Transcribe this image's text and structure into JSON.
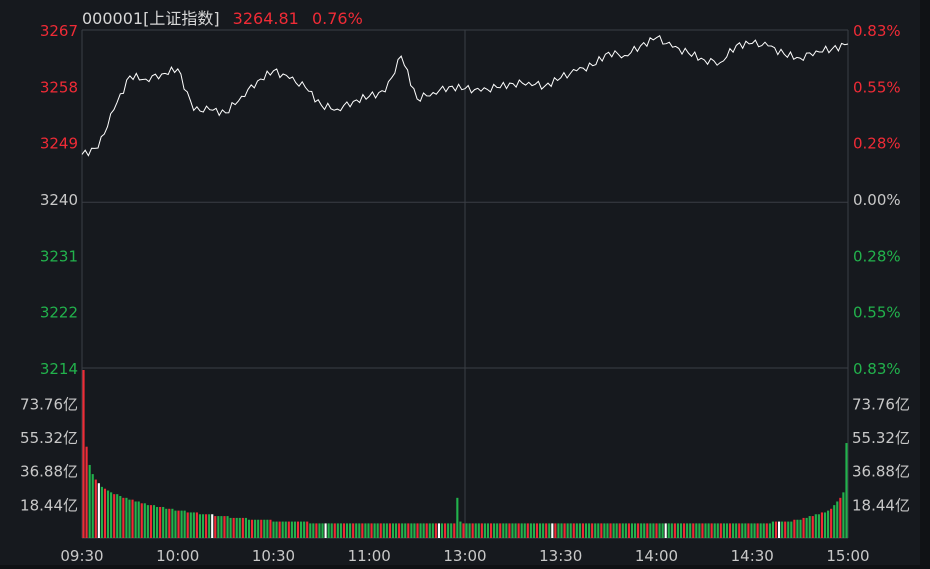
{
  "header": {
    "code_name": "000001[上证指数]",
    "price": "3264.81",
    "change_pct": "0.76%"
  },
  "colors": {
    "background": "#16191e",
    "grid": "#3a3e45",
    "axis_text_neutral": "#c8c8c8",
    "up": "#ef2b36",
    "down": "#22b24c",
    "price_line": "#ffffff",
    "volume_neutral": "#ffffff"
  },
  "chart_data": [
    {
      "type": "line",
      "title": "",
      "series": [
        {
          "name": "",
          "time": [
            "09:30",
            "09:35",
            "09:40",
            "09:45",
            "09:50",
            "09:55",
            "10:00",
            "10:05",
            "10:10",
            "10:15",
            "10:20",
            "10:25",
            "10:30",
            "10:35",
            "10:40",
            "10:45",
            "10:50",
            "10:55",
            "11:00",
            "11:05",
            "11:10",
            "11:15",
            "11:20",
            "11:25",
            "11:30/13:00",
            "13:05",
            "13:10",
            "13:15",
            "13:20",
            "13:25",
            "13:30",
            "13:35",
            "13:40",
            "13:45",
            "13:50",
            "13:55",
            "14:00",
            "14:05",
            "14:10",
            "14:15",
            "14:20",
            "14:25",
            "14:30",
            "14:35",
            "14:40",
            "14:45",
            "14:50",
            "14:55",
            "15:00"
          ],
          "values": [
            3247.5,
            3248.5,
            3254.5,
            3259.8,
            3259.3,
            3260.1,
            3260.9,
            3254.4,
            3254.5,
            3254.0,
            3256.6,
            3259.0,
            3260.6,
            3259.4,
            3258.0,
            3255.2,
            3254.6,
            3255.8,
            3256.6,
            3257.3,
            3262.9,
            3256.2,
            3257.2,
            3258.1,
            3257.8,
            3257.4,
            3258.0,
            3258.6,
            3258.8,
            3258.2,
            3259.5,
            3260.6,
            3261.4,
            3263.5,
            3263.0,
            3264.5,
            3265.8,
            3264.3,
            3263.4,
            3262.3,
            3261.9,
            3264.6,
            3264.9,
            3264.5,
            3263.2,
            3262.6,
            3263.7,
            3264.0,
            3264.81
          ]
        }
      ],
      "y_axis_left": [
        "3267",
        "3258",
        "3249",
        "3240",
        "3231",
        "3222",
        "3214"
      ],
      "y_axis_right": [
        "0.83%",
        "0.55%",
        "0.28%",
        "0.00%",
        "0.28%",
        "0.55%",
        "0.83%"
      ],
      "ylim": [
        3214,
        3267
      ],
      "baseline": 3240,
      "x_tick_labels": [
        "09:30",
        "10:00",
        "10:30",
        "11:00",
        "13:00",
        "13:30",
        "14:00",
        "14:30",
        "15:00"
      ],
      "grid": true
    },
    {
      "type": "bar",
      "title": "",
      "y_axis_labels": [
        "73.76亿",
        "55.32亿",
        "36.88亿",
        "18.44亿"
      ],
      "y_axis_values": [
        73.76,
        55.32,
        36.88,
        18.44
      ],
      "series": [
        {
          "name": "",
          "x_range_labels": [
            "09:30",
            "15:00"
          ],
          "values": [
            92,
            50,
            40,
            35,
            32,
            30,
            28,
            27,
            26,
            25,
            24,
            24,
            23,
            22,
            22,
            21,
            21,
            20,
            20,
            19,
            19,
            18,
            18,
            18,
            17,
            17,
            17,
            16,
            16,
            16,
            15,
            15,
            15,
            15,
            14,
            14,
            14,
            14,
            13,
            13,
            13,
            13,
            13,
            12,
            12,
            12,
            12,
            12,
            11,
            11,
            11,
            11,
            11,
            11,
            10,
            10,
            10,
            10,
            10,
            10,
            10,
            10,
            9,
            9,
            9,
            9,
            9,
            9,
            9,
            9,
            9,
            9,
            9,
            9,
            8,
            8,
            8,
            8,
            8,
            8,
            8,
            8,
            8,
            8,
            8,
            8,
            8,
            8,
            8,
            8,
            8,
            8,
            8,
            8,
            8,
            8,
            8,
            8,
            8,
            8,
            8,
            8,
            8,
            8,
            8,
            8,
            8,
            8,
            8,
            8,
            8,
            8,
            8,
            8,
            8,
            8,
            8,
            8,
            8,
            8,
            8,
            8,
            22,
            9,
            8,
            8,
            8,
            8,
            8,
            8,
            8,
            8,
            8,
            8,
            8,
            8,
            8,
            8,
            8,
            8,
            8,
            8,
            8,
            8,
            8,
            8,
            8,
            8,
            8,
            8,
            8,
            8,
            8,
            8,
            8,
            8,
            8,
            8,
            8,
            8,
            8,
            8,
            8,
            8,
            8,
            8,
            8,
            8,
            8,
            8,
            8,
            8,
            8,
            8,
            8,
            8,
            8,
            8,
            8,
            8,
            8,
            8,
            8,
            8,
            8,
            8,
            8,
            8,
            8,
            8,
            8,
            8,
            8,
            8,
            8,
            8,
            8,
            8,
            8,
            8,
            8,
            8,
            8,
            8,
            8,
            8,
            8,
            8,
            8,
            8,
            8,
            8,
            8,
            8,
            8,
            8,
            8,
            8,
            8,
            8,
            8,
            8,
            8,
            8,
            8,
            9,
            9,
            9,
            9,
            9,
            9,
            9,
            10,
            10,
            10,
            11,
            11,
            12,
            12,
            13,
            13,
            14,
            14,
            15,
            16,
            18,
            20,
            22,
            25,
            52
          ]
        }
      ]
    }
  ]
}
